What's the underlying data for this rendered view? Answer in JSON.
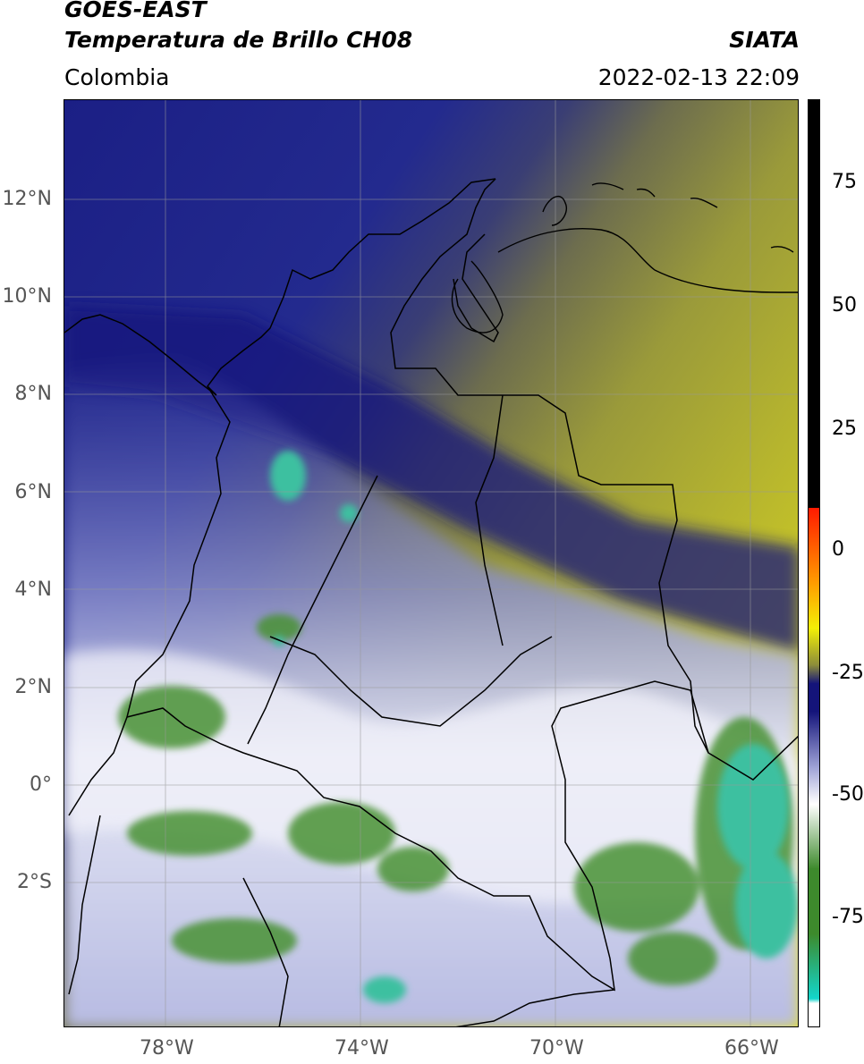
{
  "header": {
    "title_line1": "GOES-EAST",
    "title_line2": "Temperatura de Brillo CH08",
    "source": "SIATA",
    "region": "Colombia",
    "datetime": "2022-02-13 22:09"
  },
  "axes": {
    "lat_labels": [
      "12°N",
      "10°N",
      "8°N",
      "6°N",
      "4°N",
      "2°N",
      "0°",
      "2°S"
    ],
    "lon_labels": [
      "78°W",
      "74°W",
      "70°W",
      "66°W"
    ]
  },
  "colorbar": {
    "ticks": [
      "75",
      "50",
      "25",
      "0",
      "-25",
      "-50",
      "-75"
    ],
    "colors": {
      "black": "#000000",
      "red": "#ff1a00",
      "orange": "#ff9a00",
      "yellow": "#f3ef06",
      "olive": "#8c8c3a",
      "navy": "#14147a",
      "lavender": "#9ea2d6",
      "white": "#ffffff",
      "green": "#3d8a2c",
      "cyan": "#13d6cc"
    }
  }
}
